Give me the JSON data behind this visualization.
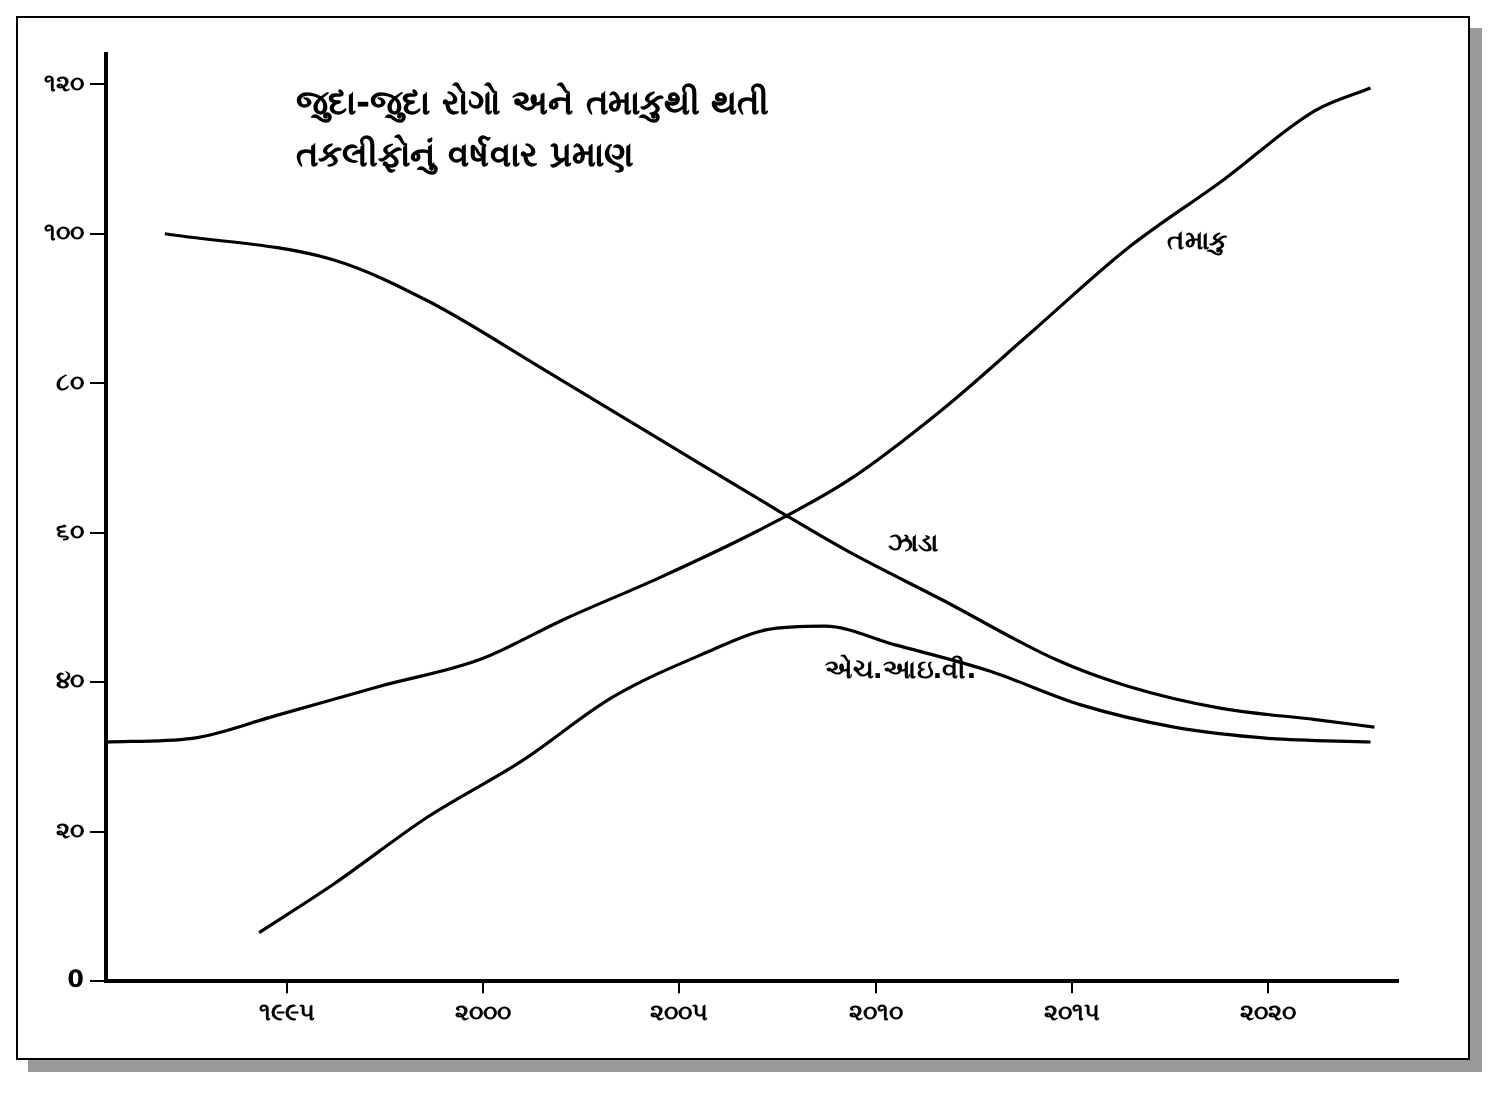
{
  "chart_data": {
    "type": "line",
    "title": "જુદા-જુદા રોગો અને તમાકુથી થતી તકલીફોનું વર્ષવાર પ્રમાણ",
    "series": [
      {
        "name": "ઝાડા",
        "color": "#000000",
        "x": [
          1991.9,
          1996.2,
          1998.6,
          2001.5,
          2004.5,
          2007.5,
          2009.3,
          2011.7,
          2014.6,
          2016.4,
          2018.8,
          2021.2,
          2022.7
        ],
        "values": [
          100,
          96.5,
          91,
          82,
          72.5,
          63,
          57.5,
          51,
          43,
          39.5,
          36.5,
          35,
          34
        ]
      },
      {
        "name": "તમાકુ",
        "color": "#000000",
        "x": [
          1990.4,
          1992.6,
          1994.7,
          1997.4,
          1999.9,
          2002.1,
          2004.5,
          2006.9,
          2009.3,
          2011.7,
          2014,
          2016.4,
          2018.8,
          2021.2,
          2022.6
        ],
        "values": [
          32,
          32.5,
          35.5,
          39.5,
          43,
          48.5,
          54,
          60,
          67,
          76.5,
          87,
          98,
          107,
          116.5,
          119.5
        ]
      },
      {
        "name": "એચ.આઇ.વી.",
        "color": "#000000",
        "x": [
          1994.3,
          1996.2,
          1998.6,
          2001,
          2003.3,
          2005.7,
          2007.2,
          2008.7,
          2010.5,
          2012.9,
          2015.2,
          2017.6,
          2020,
          2022.6
        ],
        "values": [
          6.5,
          13,
          22,
          29.5,
          38,
          44,
          47,
          47.5,
          45,
          41.5,
          37,
          34,
          32.5,
          32
        ]
      }
    ],
    "xlim": [
      1990.4,
      2023.3
    ],
    "xticks": [
      {
        "value": 1995,
        "label": "૧૯૯૫"
      },
      {
        "value": 2000,
        "label": "૨૦૦૦"
      },
      {
        "value": 2005,
        "label": "૨૦૦૫"
      },
      {
        "value": 2010,
        "label": "૨૦૧૦"
      },
      {
        "value": 2015,
        "label": "૨૦૧૫"
      },
      {
        "value": 2020,
        "label": "૨૦૨૦"
      }
    ],
    "ylim": [
      0,
      124
    ],
    "yticks": [
      {
        "value": 0,
        "label": "0"
      },
      {
        "value": 20,
        "label": "૨૦"
      },
      {
        "value": 40,
        "label": "૪૦"
      },
      {
        "value": 60,
        "label": "૬૦"
      },
      {
        "value": 80,
        "label": "૮૦"
      },
      {
        "value": 100,
        "label": "૧૦૦"
      },
      {
        "value": 120,
        "label": "૧૨૦"
      }
    ],
    "grid": false,
    "legend": false,
    "marker": "none",
    "line_style": "solid"
  }
}
